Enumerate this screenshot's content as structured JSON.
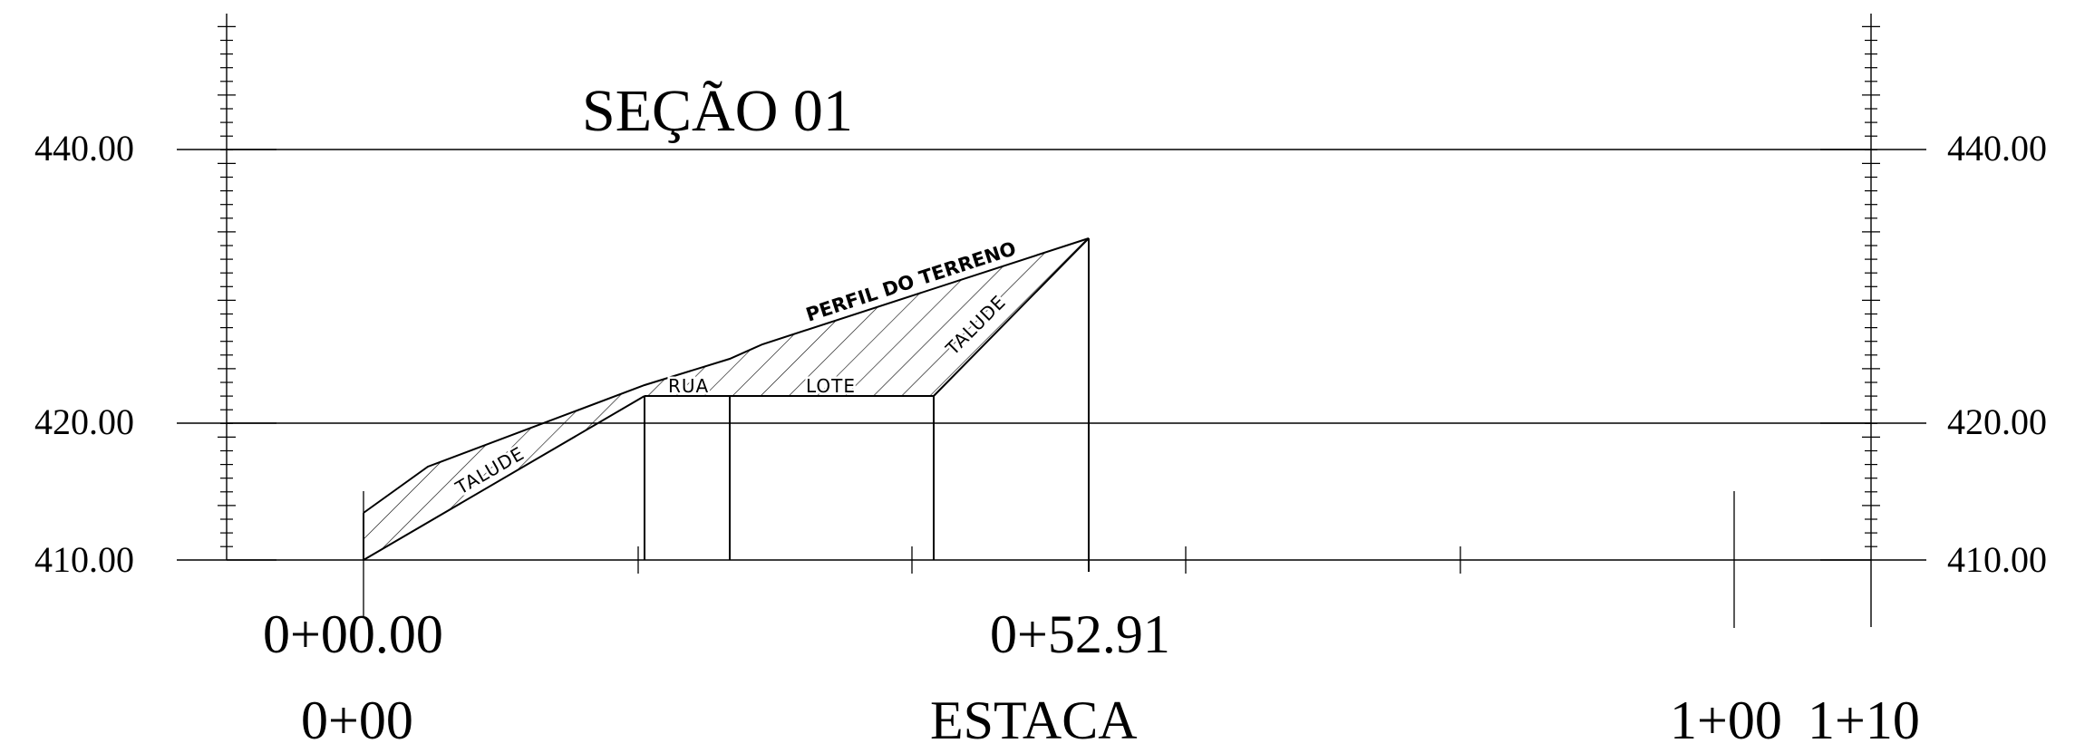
{
  "title": "SEÇÃO 01",
  "elevation_labels": {
    "left": [
      "440.00",
      "420.00",
      "410.00"
    ],
    "right": [
      "440.00",
      "420.00",
      "410.00"
    ]
  },
  "station_labels": {
    "start_offset": "0+00.00",
    "end_offset": "0+52.91",
    "start": "0+00",
    "axis_title": "ESTACA",
    "mark_100": "1+00",
    "mark_110": "1+10"
  },
  "annotations": {
    "terrain": "PERFIL DO TERRENO",
    "slope_left": "TALUDE",
    "slope_right": "TALUDE",
    "street": "RUA",
    "lot": "LOTE"
  }
}
